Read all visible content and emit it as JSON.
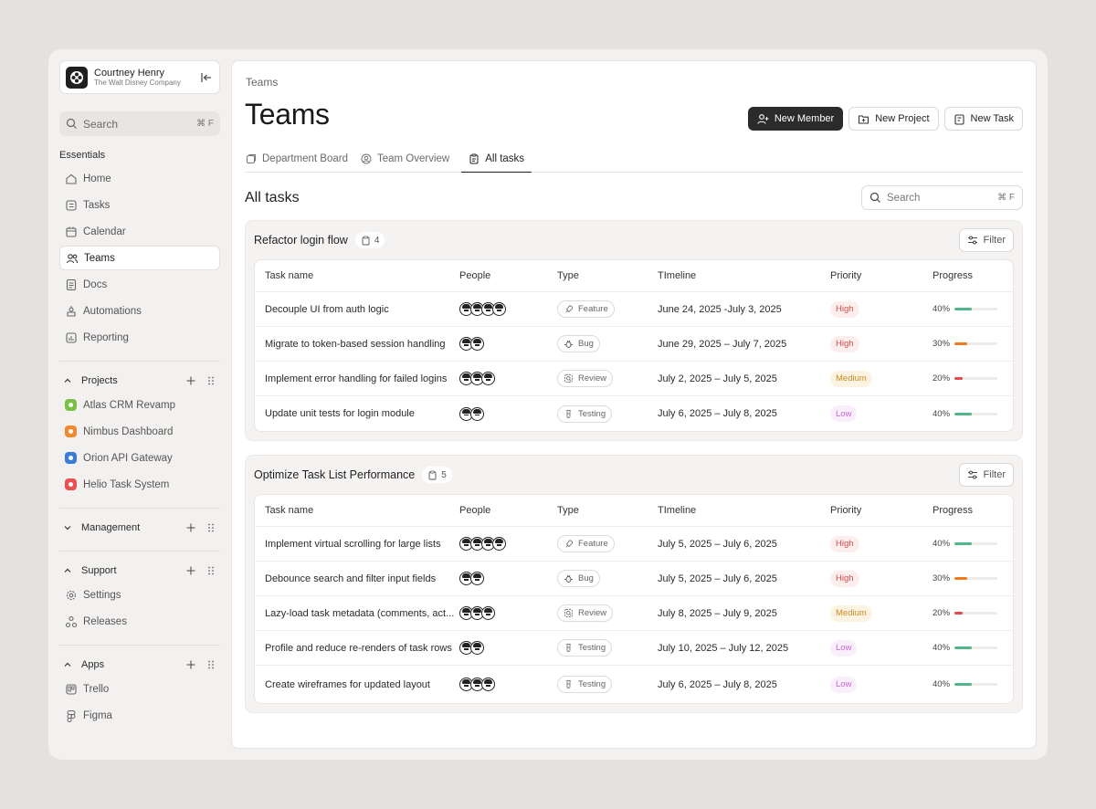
{
  "user": {
    "name": "Courtney Henry",
    "company": "The Walt Disney Company"
  },
  "sidebar": {
    "search": {
      "label": "Search",
      "shortcut": "⌘ F"
    },
    "essentials_label": "Essentials",
    "items": [
      {
        "label": "Home",
        "icon": "home-icon"
      },
      {
        "label": "Tasks",
        "icon": "tasks-icon"
      },
      {
        "label": "Calendar",
        "icon": "calendar-icon"
      },
      {
        "label": "Teams",
        "icon": "users-icon",
        "active": true
      },
      {
        "label": "Docs",
        "icon": "docs-icon"
      },
      {
        "label": "Automations",
        "icon": "automation-icon"
      },
      {
        "label": "Reporting",
        "icon": "chart-icon"
      }
    ],
    "projects": {
      "label": "Projects",
      "items": [
        {
          "label": "Atlas CRM Revamp",
          "color": "#7ac143"
        },
        {
          "label": "Nimbus Dashboard",
          "color": "#f08a2e"
        },
        {
          "label": "Orion API Gateway",
          "color": "#3a7bd5"
        },
        {
          "label": "Helio Task System",
          "color": "#e8524f"
        }
      ]
    },
    "management": {
      "label": "Management"
    },
    "support": {
      "label": "Support",
      "items": [
        {
          "label": "Settings",
          "icon": "gear-icon"
        },
        {
          "label": "Releases",
          "icon": "releases-icon"
        }
      ]
    },
    "apps": {
      "label": "Apps",
      "items": [
        {
          "label": "Trello",
          "icon": "trello-icon"
        },
        {
          "label": "Figma",
          "icon": "figma-icon"
        }
      ]
    }
  },
  "main": {
    "breadcrumb": "Teams",
    "title": "Teams",
    "actions": {
      "new_member": "New Member",
      "new_project": "New Project",
      "new_task": "New Task"
    },
    "tabs": [
      {
        "label": "Department Board"
      },
      {
        "label": "Team Overview"
      },
      {
        "label": "All tasks",
        "active": true
      }
    ],
    "section_title": "All tasks",
    "search": {
      "label": "Search",
      "shortcut": "⌘ F"
    },
    "filter_label": "Filter",
    "columns": [
      "Task name",
      "People",
      "Type",
      "TImeline",
      "Priority",
      "Progress"
    ],
    "groups": [
      {
        "name": "Refactor login flow",
        "count": "4",
        "rows": [
          {
            "task": "Decouple UI from auth logic",
            "people": 4,
            "type": "Feature",
            "type_icon": "rocket-icon",
            "timeline": "June 24, 2025 -July 3, 2025",
            "priority": "High",
            "progress": "40%"
          },
          {
            "task": "Migrate to token-based session handling",
            "people": 2,
            "type": "Bug",
            "type_icon": "bug-icon",
            "timeline": "June 29, 2025 – July 7, 2025",
            "priority": "High",
            "progress": "30%"
          },
          {
            "task": "Implement error handling for failed logins",
            "people": 3,
            "type": "Review",
            "type_icon": "review-icon",
            "timeline": "July 2, 2025 – July 5, 2025",
            "priority": "Medium",
            "progress": "20%"
          },
          {
            "task": "Update unit tests for login module",
            "people": 2,
            "type": "Testing",
            "type_icon": "test-tube-icon",
            "timeline": "July 6, 2025 – July 8, 2025",
            "priority": "Low",
            "progress": "40%"
          }
        ]
      },
      {
        "name": "Optimize Task List Performance",
        "count": "5",
        "rows": [
          {
            "task": "Implement virtual scrolling for large lists",
            "people": 4,
            "type": "Feature",
            "type_icon": "rocket-icon",
            "timeline": "July 5, 2025 – July 6, 2025",
            "priority": "High",
            "progress": "40%"
          },
          {
            "task": "Debounce search and filter input fields",
            "people": 2,
            "type": "Bug",
            "type_icon": "bug-icon",
            "timeline": "July 5, 2025 – July 6, 2025",
            "priority": "High",
            "progress": "30%"
          },
          {
            "task": "Lazy-load task metadata (comments, act...",
            "people": 3,
            "type": "Review",
            "type_icon": "review-icon",
            "timeline": "July 8, 2025 – July 9, 2025",
            "priority": "Medium",
            "progress": "20%"
          },
          {
            "task": "Profile and reduce re-renders of task rows",
            "people": 2,
            "type": "Testing",
            "type_icon": "test-tube-icon",
            "timeline": "July 10, 2025 – July 12, 2025",
            "priority": "Low",
            "progress": "40%"
          },
          {
            "task": "Create wireframes for updated layout",
            "people": 3,
            "type": "Testing",
            "type_icon": "test-tube-icon",
            "timeline": "July 6, 2025 – July 8, 2025",
            "priority": "Low",
            "progress": "40%"
          }
        ]
      }
    ]
  },
  "colors": {
    "high": "#52b788",
    "progress_high": "#52b788",
    "progress_mid": "#f07a1e",
    "progress_low": "#e5484d",
    "primary": "#2b2b2b"
  }
}
